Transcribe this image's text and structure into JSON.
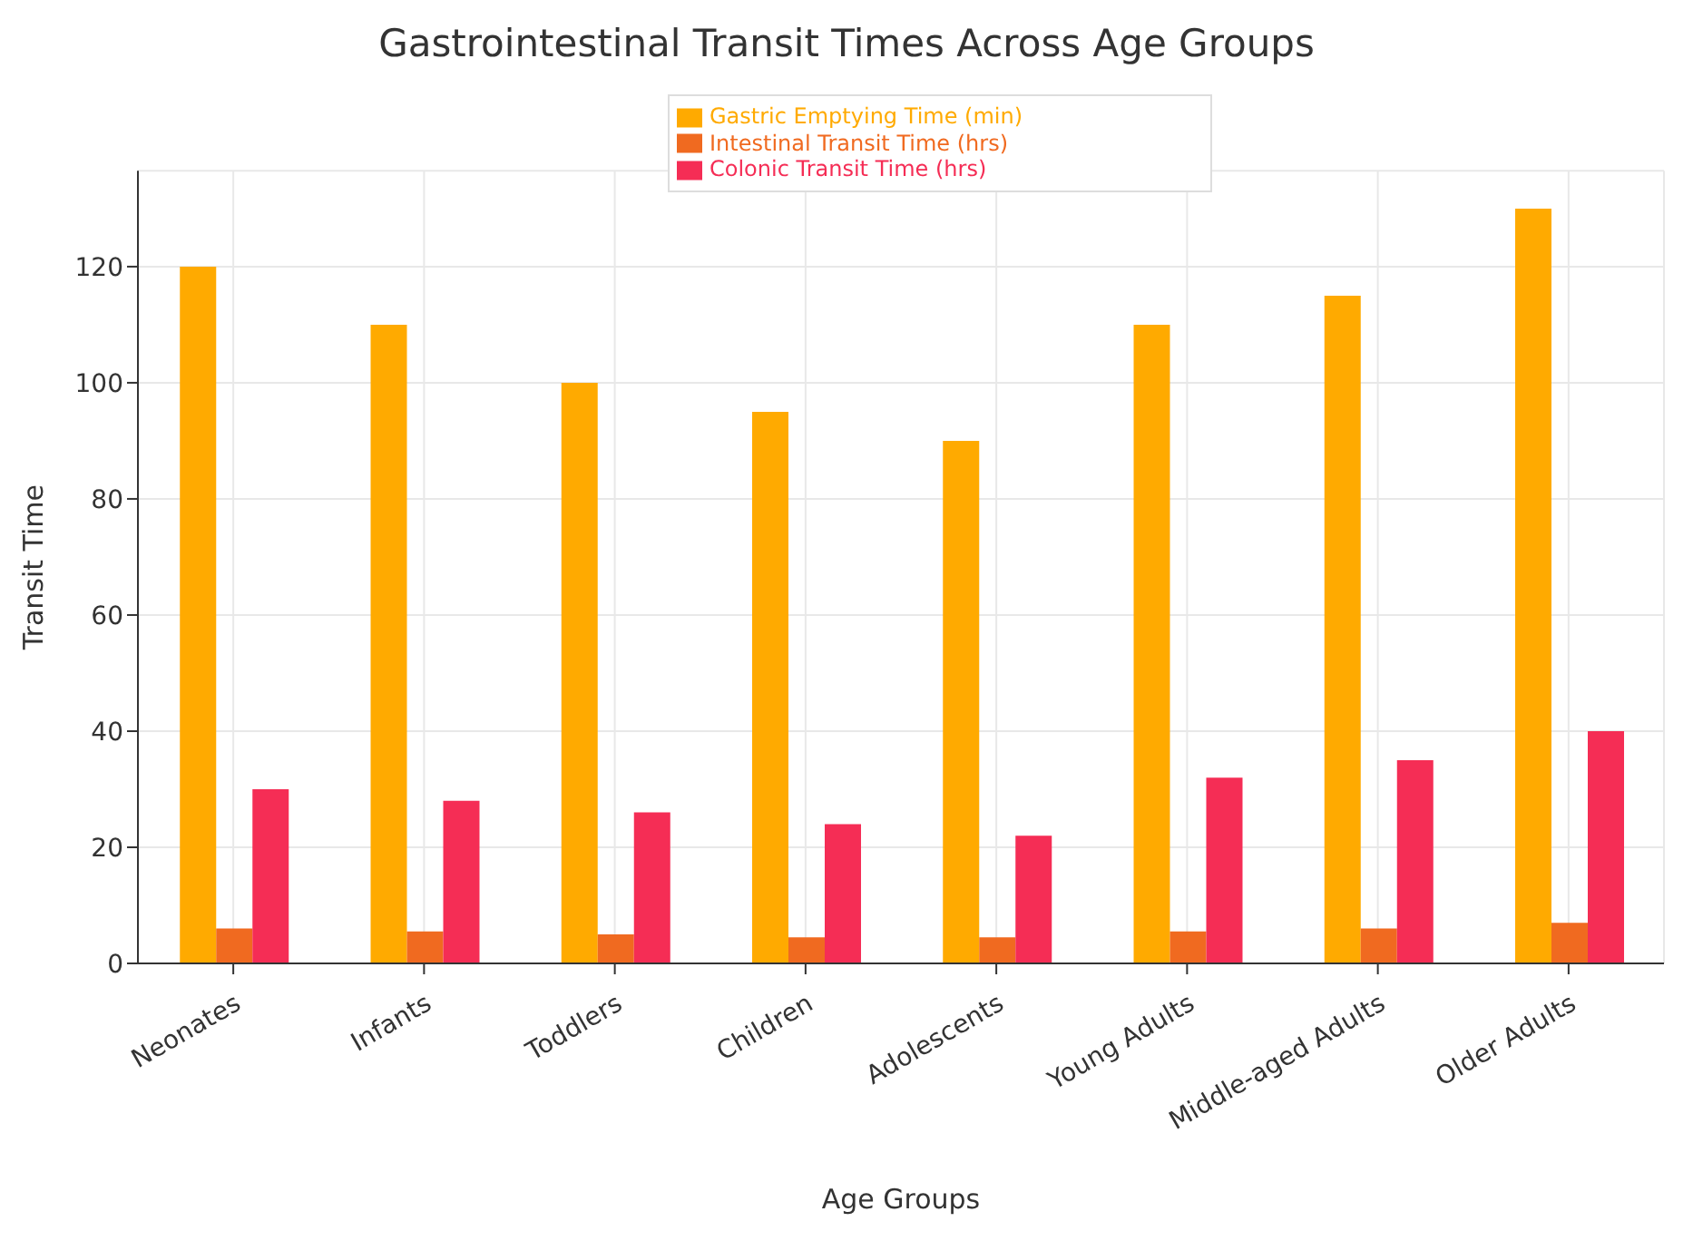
{
  "chart_data": {
    "type": "bar",
    "title": "Gastrointestinal Transit Times Across Age Groups",
    "xlabel": "Age Groups",
    "ylabel": "Transit Time",
    "categories": [
      "Neonates",
      "Infants",
      "Toddlers",
      "Children",
      "Adolescents",
      "Young Adults",
      "Middle-aged Adults",
      "Older Adults"
    ],
    "series": [
      {
        "name": "Gastric Emptying Time (min)",
        "color": "#ffaa00",
        "values": [
          120,
          110,
          100,
          95,
          90,
          110,
          115,
          130
        ]
      },
      {
        "name": "Intestinal Transit Time (hrs)",
        "color": "#f06a20",
        "values": [
          6,
          5.5,
          5,
          4.5,
          4.5,
          5.5,
          6,
          7
        ]
      },
      {
        "name": "Colonic Transit Time (hrs)",
        "color": "#f52d55",
        "values": [
          30,
          28,
          26,
          24,
          22,
          32,
          35,
          40
        ]
      }
    ],
    "ylim": [
      0,
      136.5
    ],
    "yticks": [
      0,
      20,
      40,
      60,
      80,
      100,
      120
    ],
    "grid": true,
    "legend": "top"
  }
}
